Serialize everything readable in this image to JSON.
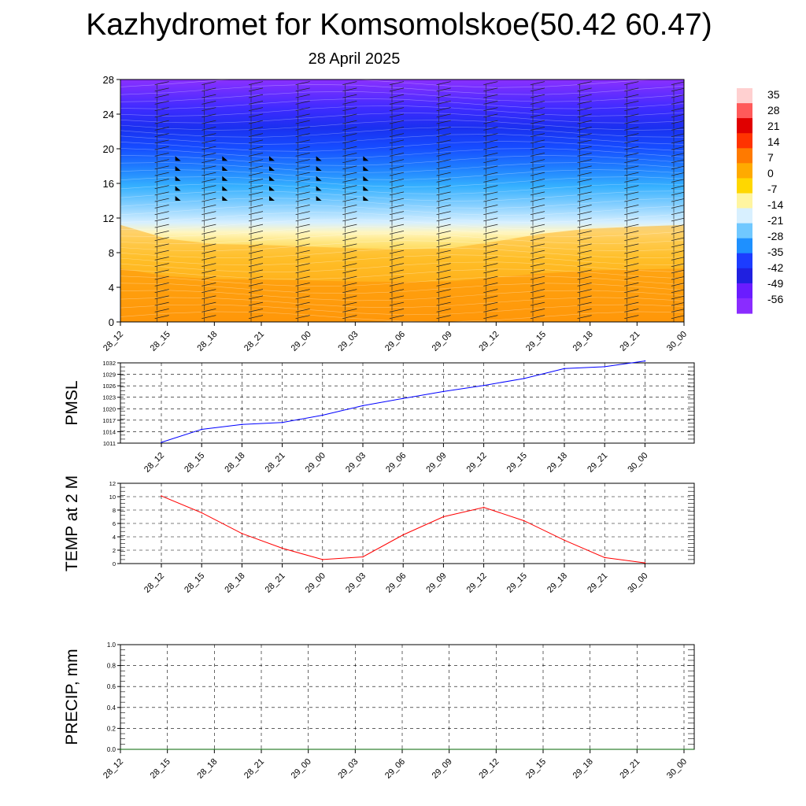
{
  "page": {
    "title": "Kazhydromet for Komsomolskoe(50.42 60.47)",
    "subtitle": "28 April 2025"
  },
  "colors": {
    "pmsl_line": "#0000ff",
    "temp_line": "#ff0000",
    "precip_line": "#006400",
    "grid": "#000000"
  },
  "chart_data": [
    {
      "id": "cross-section",
      "type": "heatmap",
      "title": "",
      "xlabel": "",
      "ylabel": "",
      "x": [
        "28_12",
        "28_15",
        "28_18",
        "28_21",
        "29_00",
        "29_03",
        "29_06",
        "29_09",
        "29_12",
        "29_15",
        "29_18",
        "29_21",
        "30_00"
      ],
      "yticks": [
        0,
        4,
        8,
        12,
        16,
        20,
        24,
        28
      ],
      "ylim": [
        0,
        28
      ],
      "freezing_level": [
        11.2,
        9.6,
        9.0,
        8.9,
        8.7,
        8.5,
        8.4,
        8.5,
        9.3,
        10.2,
        10.8,
        11.0,
        11.2
      ],
      "colorbar": {
        "labels": [
          "35",
          "28",
          "21",
          "14",
          "7",
          "0",
          "-7",
          "-14",
          "-21",
          "-28",
          "-35",
          "-42",
          "-49",
          "-56"
        ],
        "colors": [
          "#ffd0d0",
          "#ff5a5a",
          "#e00000",
          "#ff3300",
          "#ff7a00",
          "#ffaa00",
          "#ffd700",
          "#fff5a0",
          "#d8f0ff",
          "#70c8ff",
          "#1e90ff",
          "#1c3cff",
          "#2020e0",
          "#6a1cff",
          "#8a2cff"
        ]
      },
      "wind_barbs": true
    },
    {
      "id": "pmsl",
      "type": "line",
      "title": "",
      "xlabel": "",
      "ylabel": "PMSL",
      "x": [
        "28_12",
        "28_15",
        "28_18",
        "28_21",
        "29_00",
        "29_03",
        "29_06",
        "29_09",
        "29_12",
        "29_15",
        "29_18",
        "29_21",
        "30_00"
      ],
      "series": [
        {
          "values": [
            1011.2,
            1014.6,
            1015.9,
            1016.4,
            1018.3,
            1020.8,
            1022.7,
            1024.5,
            1026.1,
            1027.9,
            1030.5,
            1031.0,
            1032.5
          ]
        }
      ],
      "ylim": [
        1011,
        1032
      ],
      "yticks": [
        "1011",
        "1014",
        "1017",
        "1020",
        "1023",
        "1026",
        "1029",
        "1032"
      ],
      "grid": true
    },
    {
      "id": "temp2m",
      "type": "line",
      "title": "",
      "xlabel": "",
      "ylabel": "TEMP at 2 M",
      "x": [
        "28_12",
        "28_15",
        "28_18",
        "28_21",
        "29_00",
        "29_03",
        "29_06",
        "29_09",
        "29_12",
        "29_15",
        "29_18",
        "29_21",
        "30_00"
      ],
      "series": [
        {
          "values": [
            10.1,
            7.6,
            4.5,
            2.3,
            0.6,
            1.0,
            4.3,
            7.0,
            8.4,
            6.4,
            3.5,
            0.9,
            0.1
          ]
        }
      ],
      "ylim": [
        0,
        12
      ],
      "yticks": [
        "0",
        "2",
        "4",
        "6",
        "8",
        "10",
        "12"
      ],
      "grid": true
    },
    {
      "id": "precip",
      "type": "line",
      "title": "",
      "xlabel": "",
      "ylabel": "PRECIP, mm",
      "x": [
        "28_12",
        "28_15",
        "28_18",
        "28_21",
        "29_00",
        "29_03",
        "29_06",
        "29_09",
        "29_12",
        "29_15",
        "29_18",
        "29_21",
        "30_00"
      ],
      "series": [
        {
          "values": [
            0,
            0,
            0,
            0,
            0,
            0,
            0,
            0,
            0,
            0,
            0,
            0,
            0
          ]
        }
      ],
      "ylim": [
        0,
        1
      ],
      "yticks": [
        "0.0",
        "0.2",
        "0.4",
        "0.6",
        "0.8",
        "1.0"
      ],
      "grid": true
    }
  ]
}
